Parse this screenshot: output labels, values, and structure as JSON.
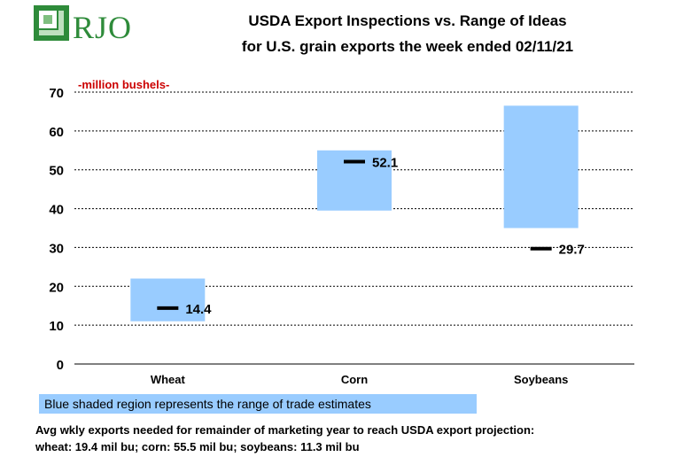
{
  "logo": {
    "text": "RJO"
  },
  "title": {
    "line1": "USDA Export Inspections vs. Range of Ideas",
    "line2": "for U.S. grain exports the week ended 02/11/21"
  },
  "colors": {
    "range": "#99ccff",
    "marker": "#000000",
    "unit_label": "#cc0000",
    "grid": "#000000"
  },
  "chart_data": {
    "type": "floating-bar",
    "title": "USDA Export Inspections vs. Range of Ideas for U.S. grain exports the week ended 02/11/21",
    "ylabel": "-million bushels-",
    "ylim": [
      0,
      70
    ],
    "yticks": [
      0,
      10,
      20,
      30,
      40,
      50,
      60,
      70
    ],
    "grid": true,
    "categories": [
      "Wheat",
      "Corn",
      "Soybeans"
    ],
    "series": [
      {
        "name": "Range of trade estimates (low)",
        "values": [
          11,
          39.5,
          35
        ]
      },
      {
        "name": "Range of trade estimates (high)",
        "values": [
          22,
          55,
          66.5
        ]
      },
      {
        "name": "Actual export inspections",
        "values": [
          14.4,
          52.1,
          29.7
        ]
      }
    ],
    "value_labels": [
      "14.4",
      "52.1",
      "29.7"
    ]
  },
  "legend": {
    "text": "Blue shaded region represents the range of trade estimates"
  },
  "notes": {
    "line1": "Avg wkly exports needed for remainder of marketing year to reach USDA export projection:",
    "line2": "wheat: 19.4 mil bu; corn: 55.5 mil bu; soybeans: 11.3 mil bu"
  }
}
